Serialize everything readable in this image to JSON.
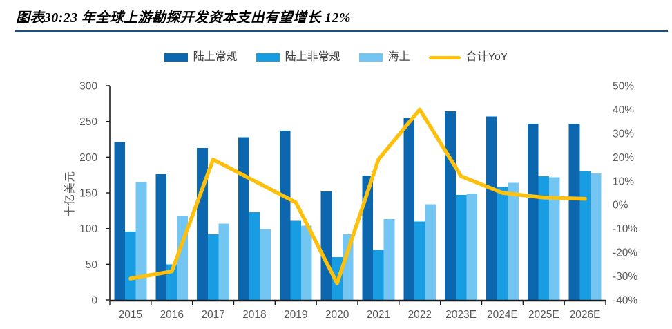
{
  "header": {
    "title": "图表30:23 年全球上游勘探开发资本支出有望增长 12%",
    "accent_color": "#1f4e79"
  },
  "chart_data": {
    "type": "bar+line",
    "categories": [
      "2015",
      "2016",
      "2017",
      "2018",
      "2019",
      "2020",
      "2021",
      "2022",
      "2023E",
      "2024E",
      "2025E",
      "2026E"
    ],
    "series": [
      {
        "name": "陆上常规",
        "type": "bar",
        "axis": "left",
        "color": "#0d67af",
        "values": [
          221,
          176,
          213,
          228,
          237,
          152,
          174,
          255,
          264,
          257,
          247,
          247
        ]
      },
      {
        "name": "陆上非常规",
        "type": "bar",
        "axis": "left",
        "color": "#189de2",
        "values": [
          96,
          50,
          92,
          123,
          111,
          60,
          70,
          110,
          147,
          158,
          173,
          180
        ]
      },
      {
        "name": "海上",
        "type": "bar",
        "axis": "left",
        "color": "#74c6f2",
        "values": [
          165,
          118,
          107,
          99,
          104,
          92,
          113,
          134,
          149,
          164,
          172,
          177
        ]
      },
      {
        "name": "合计YoY",
        "type": "line",
        "axis": "right",
        "color": "#fdc00d",
        "values": [
          -31,
          -28,
          19,
          10,
          1,
          -33,
          19,
          40,
          12,
          5,
          3,
          2.5
        ]
      }
    ],
    "left_axis": {
      "title": "十亿美元",
      "min": 0,
      "max": 300,
      "step": 50,
      "tick_labels_top_down": [
        "300",
        "250",
        "200",
        "150",
        "100",
        "50",
        "0"
      ]
    },
    "right_axis": {
      "min": -40,
      "max": 50,
      "step": 10,
      "tick_labels_top_down": [
        "50%",
        "40%",
        "30%",
        "20%",
        "10%",
        "0%",
        "-10%",
        "-20%",
        "-30%",
        "-40%"
      ]
    },
    "legend_position": "top",
    "grid": false
  }
}
